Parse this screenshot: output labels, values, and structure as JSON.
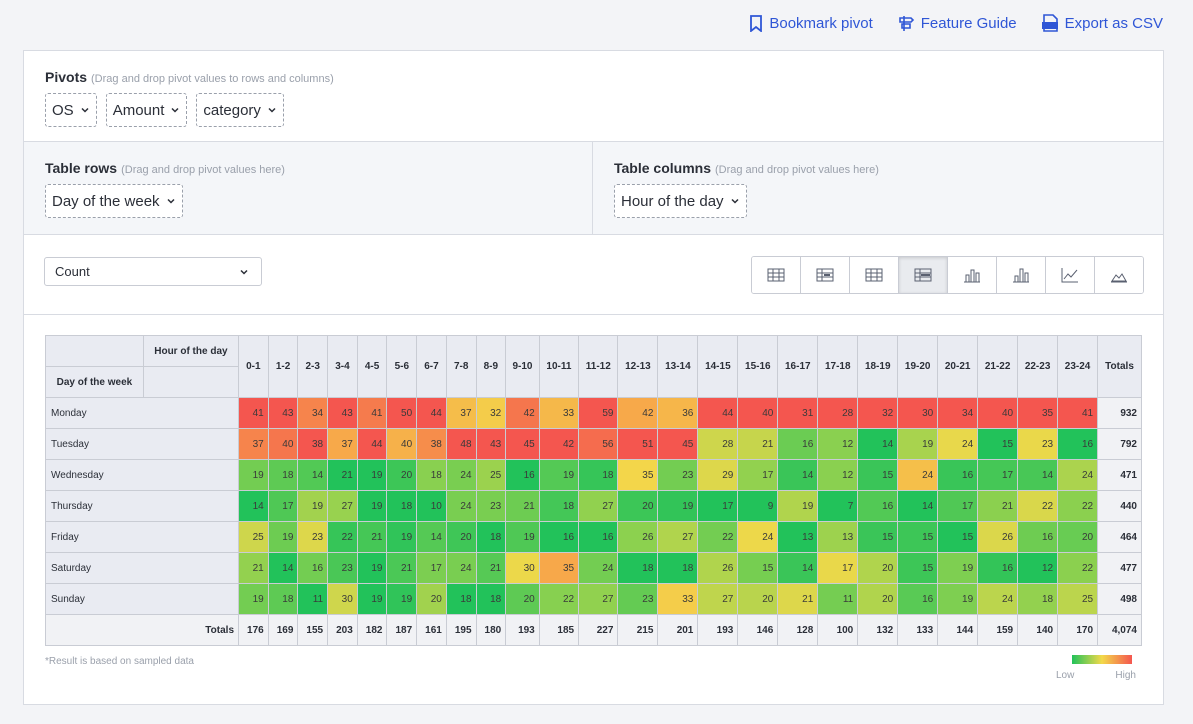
{
  "toolbar": {
    "links": [
      "Bookmark pivot",
      "Feature Guide",
      "Export as CSV"
    ]
  },
  "pivots": {
    "title": "Pivots",
    "hint": "(Drag and drop pivot values to rows and columns)",
    "chips": [
      "OS",
      "Amount",
      "category"
    ]
  },
  "table_rows": {
    "title": "Table rows",
    "hint": "(Drag and drop pivot values here)",
    "chips": [
      "Day of the week"
    ]
  },
  "table_columns": {
    "title": "Table columns",
    "hint": "(Drag and drop pivot values here)",
    "chips": [
      "Hour of the day"
    ]
  },
  "aggregation": "Count",
  "table": {
    "column_field": "Hour of the day",
    "row_field": "Day of the week",
    "columns": [
      "0-1",
      "1-2",
      "2-3",
      "3-4",
      "4-5",
      "5-6",
      "6-7",
      "7-8",
      "8-9",
      "9-10",
      "10-11",
      "11-12",
      "12-13",
      "13-14",
      "14-15",
      "15-16",
      "16-17",
      "17-18",
      "18-19",
      "19-20",
      "20-21",
      "21-22",
      "22-23",
      "23-24"
    ],
    "totals_header": "Totals",
    "rows": [
      {
        "label": "Monday",
        "values": [
          41,
          43,
          34,
          43,
          41,
          50,
          44,
          37,
          32,
          42,
          33,
          59,
          42,
          36,
          44,
          40,
          31,
          28,
          32,
          30,
          34,
          40,
          35,
          41
        ],
        "total": 932
      },
      {
        "label": "Tuesday",
        "values": [
          37,
          40,
          38,
          37,
          44,
          40,
          38,
          48,
          43,
          45,
          42,
          56,
          51,
          45,
          28,
          21,
          16,
          12,
          14,
          19,
          24,
          15,
          23,
          16
        ],
        "total": 792
      },
      {
        "label": "Wednesday",
        "values": [
          19,
          18,
          14,
          21,
          19,
          20,
          18,
          24,
          25,
          16,
          19,
          18,
          35,
          23,
          29,
          17,
          14,
          12,
          15,
          24,
          16,
          17,
          14,
          24
        ],
        "total": 471
      },
      {
        "label": "Thursday",
        "values": [
          14,
          17,
          19,
          27,
          19,
          18,
          10,
          24,
          23,
          21,
          18,
          27,
          20,
          19,
          17,
          9,
          19,
          7,
          16,
          14,
          17,
          21,
          22,
          22
        ],
        "total": 440
      },
      {
        "label": "Friday",
        "values": [
          25,
          19,
          23,
          22,
          21,
          19,
          14,
          20,
          18,
          19,
          16,
          16,
          26,
          27,
          22,
          24,
          13,
          13,
          15,
          15,
          15,
          26,
          16,
          20
        ],
        "total": 464
      },
      {
        "label": "Saturday",
        "values": [
          21,
          14,
          16,
          23,
          19,
          21,
          17,
          24,
          21,
          30,
          35,
          24,
          18,
          18,
          26,
          15,
          14,
          17,
          20,
          15,
          19,
          16,
          12,
          22
        ],
        "total": 477
      },
      {
        "label": "Sunday",
        "values": [
          19,
          18,
          11,
          30,
          19,
          19,
          20,
          18,
          18,
          20,
          22,
          27,
          23,
          33,
          27,
          20,
          21,
          11,
          20,
          16,
          19,
          24,
          18,
          25
        ],
        "total": 498
      }
    ],
    "totals_label": "Totals",
    "column_totals": [
      176,
      169,
      155,
      203,
      182,
      187,
      161,
      195,
      180,
      193,
      185,
      227,
      215,
      201,
      193,
      146,
      128,
      100,
      132,
      133,
      144,
      159,
      140,
      170
    ],
    "grand_total": "4,074"
  },
  "footnote": "*Result is based on sampled data",
  "legend": {
    "low": "Low",
    "high": "High"
  }
}
